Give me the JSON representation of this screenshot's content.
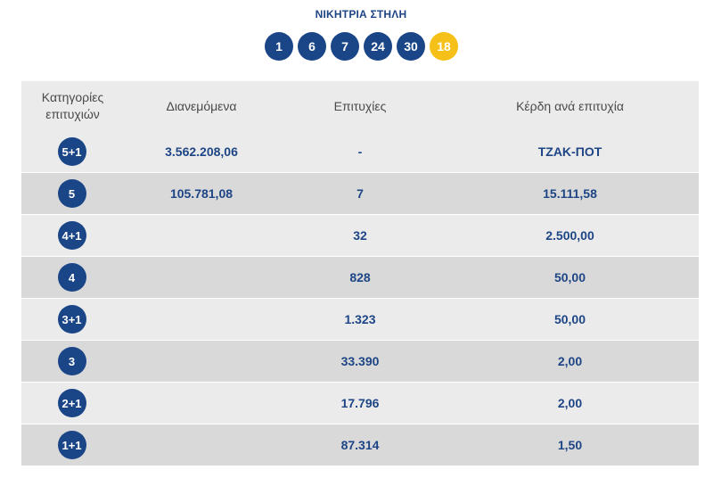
{
  "winning_column": {
    "title": "ΝΙΚΗΤΡΙΑ ΣΤΗΛΗ",
    "numbers": [
      "1",
      "6",
      "7",
      "24",
      "30"
    ],
    "joker": "18"
  },
  "colors": {
    "primary": "#1a4587",
    "joker": "#f5c118",
    "row_light": "#ebebeb",
    "row_dark": "#d9d9d9"
  },
  "table": {
    "headers": {
      "category_line1": "Κατηγορίες",
      "category_line2": "επιτυχιών",
      "distributed": "Διανεμόμενα",
      "winners": "Επιτυχίες",
      "prize": "Κέρδη ανά επιτυχία"
    },
    "rows": [
      {
        "category": "5+1",
        "distributed": "3.562.208,06",
        "winners": "-",
        "prize": "ΤΖΑΚ-ΠΟΤ"
      },
      {
        "category": "5",
        "distributed": "105.781,08",
        "winners": "7",
        "prize": "15.111,58"
      },
      {
        "category": "4+1",
        "distributed": "",
        "winners": "32",
        "prize": "2.500,00"
      },
      {
        "category": "4",
        "distributed": "",
        "winners": "828",
        "prize": "50,00"
      },
      {
        "category": "3+1",
        "distributed": "",
        "winners": "1.323",
        "prize": "50,00"
      },
      {
        "category": "3",
        "distributed": "",
        "winners": "33.390",
        "prize": "2,00"
      },
      {
        "category": "2+1",
        "distributed": "",
        "winners": "17.796",
        "prize": "2,00"
      },
      {
        "category": "1+1",
        "distributed": "",
        "winners": "87.314",
        "prize": "1,50"
      }
    ]
  }
}
